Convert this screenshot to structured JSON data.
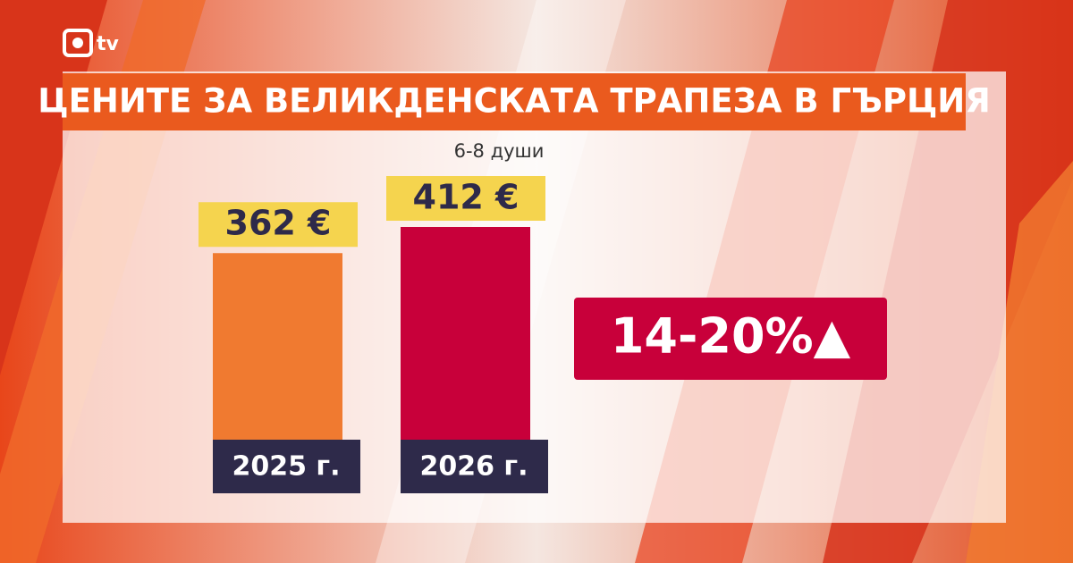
{
  "chart_data": {
    "type": "bar",
    "title": "ЦЕНИТЕ ЗА ВЕЛИКДЕНСКАТА ТРАПЕЗА В ГЪРЦИЯ",
    "subtitle": "6-8 души",
    "categories": [
      "2025 г.",
      "2026 г."
    ],
    "values": [
      362,
      412
    ],
    "value_labels": [
      "362 €",
      "412 €"
    ],
    "colors": [
      "#f07a30",
      "#c8003a"
    ],
    "annotation": "14-20%▲",
    "logo": "tv"
  }
}
